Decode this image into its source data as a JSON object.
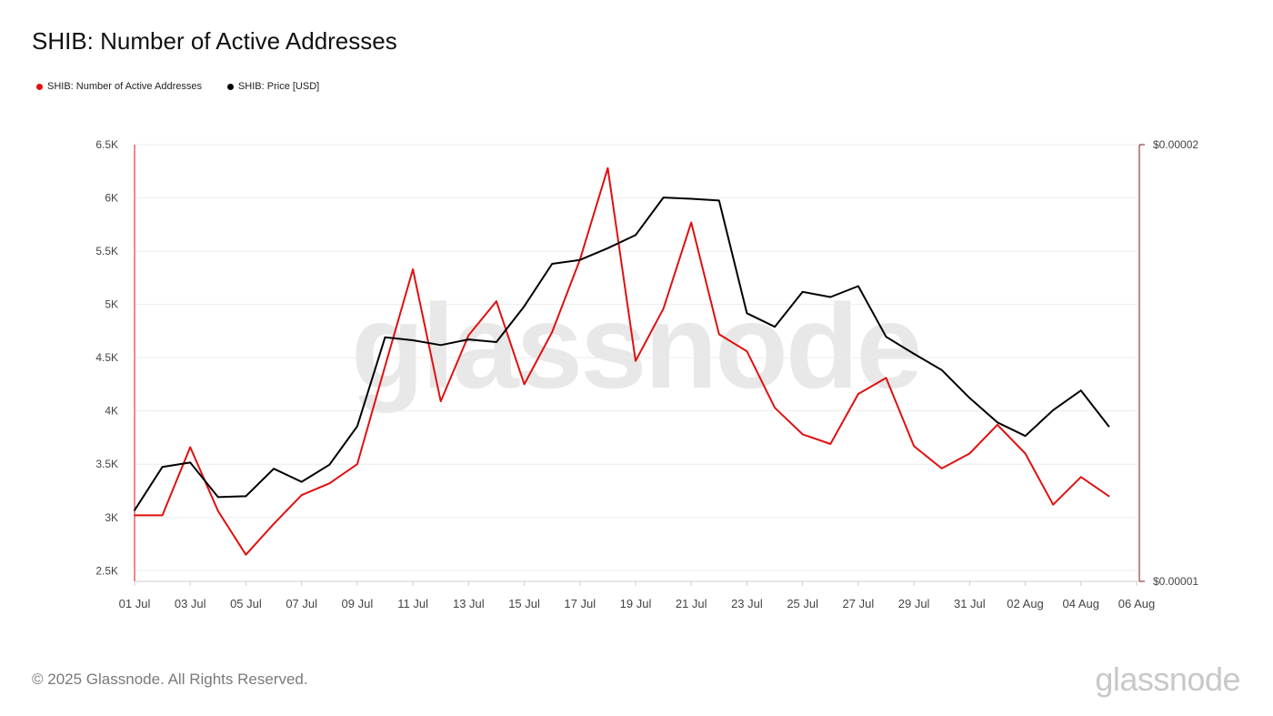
{
  "header": {
    "title": "SHIB: Number of Active Addresses"
  },
  "legend": {
    "items": [
      {
        "label": "SHIB: Number of Active Addresses",
        "color": "#e01010"
      },
      {
        "label": "SHIB: Price [USD]",
        "color": "#000000"
      }
    ]
  },
  "watermark": "glassnode",
  "footer": {
    "copyright": "© 2025 Glassnode. All Rights Reserved.",
    "logo": "glassnode"
  },
  "chart_data": {
    "type": "line",
    "title": "SHIB: Number of Active Addresses",
    "grid": true,
    "legend_position": "top-left",
    "x": [
      "01 Jul",
      "02 Jul",
      "03 Jul",
      "04 Jul",
      "05 Jul",
      "06 Jul",
      "07 Jul",
      "08 Jul",
      "09 Jul",
      "10 Jul",
      "11 Jul",
      "12 Jul",
      "13 Jul",
      "14 Jul",
      "15 Jul",
      "16 Jul",
      "17 Jul",
      "18 Jul",
      "19 Jul",
      "20 Jul",
      "21 Jul",
      "22 Jul",
      "23 Jul",
      "24 Jul",
      "25 Jul",
      "26 Jul",
      "27 Jul",
      "28 Jul",
      "29 Jul",
      "30 Jul",
      "31 Jul",
      "01 Aug",
      "02 Aug",
      "03 Aug",
      "04 Aug",
      "05 Aug"
    ],
    "x_tick_labels": [
      "01 Jul",
      "03 Jul",
      "05 Jul",
      "07 Jul",
      "09 Jul",
      "11 Jul",
      "13 Jul",
      "15 Jul",
      "17 Jul",
      "19 Jul",
      "21 Jul",
      "23 Jul",
      "25 Jul",
      "27 Jul",
      "29 Jul",
      "31 Jul",
      "02 Aug",
      "04 Aug",
      "06 Aug"
    ],
    "y_left": {
      "lim": [
        2400,
        6500
      ],
      "ticks": [
        2500,
        3000,
        3500,
        4000,
        4500,
        5000,
        5500,
        6000,
        6500
      ],
      "tick_labels": [
        "2.5K",
        "3K",
        "3.5K",
        "4K",
        "4.5K",
        "5K",
        "5.5K",
        "6K",
        "6.5K"
      ]
    },
    "y_right": {
      "lim": [
        1e-05,
        2e-05
      ],
      "tick_labels": [
        "$0.00001",
        "$0.00002"
      ]
    },
    "series": [
      {
        "name": "SHIB: Number of Active Addresses",
        "axis": "left",
        "color": "#e01010",
        "values": [
          3020,
          3020,
          3660,
          3060,
          2650,
          2940,
          3210,
          3320,
          3500,
          4420,
          5330,
          4090,
          4710,
          5030,
          4250,
          4740,
          5420,
          6280,
          4470,
          4960,
          5770,
          4720,
          4560,
          4030,
          3780,
          3690,
          4160,
          4310,
          3670,
          3460,
          3600,
          3870,
          3600,
          3120,
          3380,
          3200
        ]
      },
      {
        "name": "SHIB: Price [USD]",
        "axis": "right",
        "color": "#000000",
        "values": [
          1.163e-05,
          1.262e-05,
          1.272e-05,
          1.193e-05,
          1.195e-05,
          1.258e-05,
          1.228e-05,
          1.267e-05,
          1.355e-05,
          1.559e-05,
          1.552e-05,
          1.541e-05,
          1.554e-05,
          1.548e-05,
          1.63e-05,
          1.727e-05,
          1.736e-05,
          1.763e-05,
          1.793e-05,
          1.879e-05,
          1.876e-05,
          1.872e-05,
          1.614e-05,
          1.583e-05,
          1.663e-05,
          1.651e-05,
          1.676e-05,
          1.56e-05,
          1.521e-05,
          1.484e-05,
          1.42e-05,
          1.364e-05,
          1.333e-05,
          1.392e-05,
          1.437e-05,
          1.355e-05
        ]
      }
    ]
  }
}
